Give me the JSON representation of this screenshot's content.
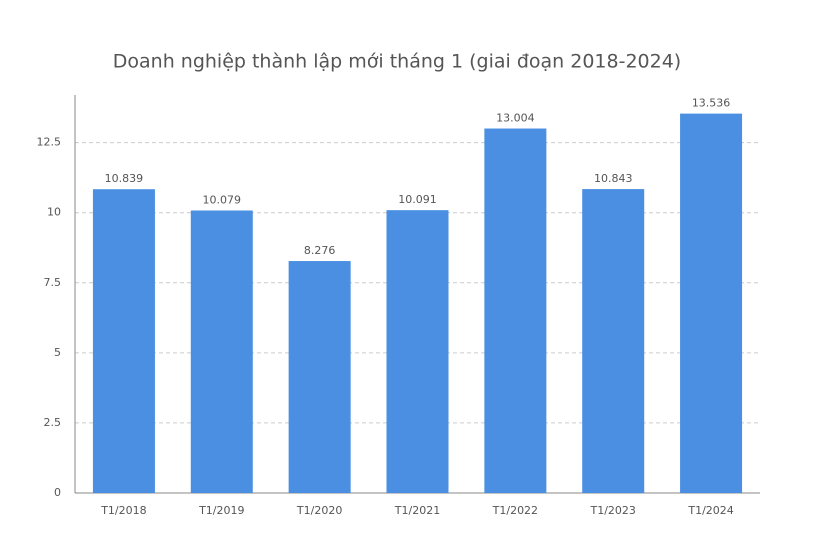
{
  "chart_data": {
    "type": "bar",
    "title": "Doanh nghiệp thành lập mới tháng 1 (giai đoạn 2018-2024)",
    "categories": [
      "T1/2018",
      "T1/2019",
      "T1/2020",
      "T1/2021",
      "T1/2022",
      "T1/2023",
      "T1/2024"
    ],
    "values": [
      10.839,
      10.079,
      8.276,
      10.091,
      13.004,
      10.843,
      13.536
    ],
    "color": "#4a8fe2",
    "ylim": [
      0,
      14.2
    ],
    "yticks": [
      0,
      2.5,
      5,
      7.5,
      10,
      12.5
    ],
    "grid": true
  }
}
